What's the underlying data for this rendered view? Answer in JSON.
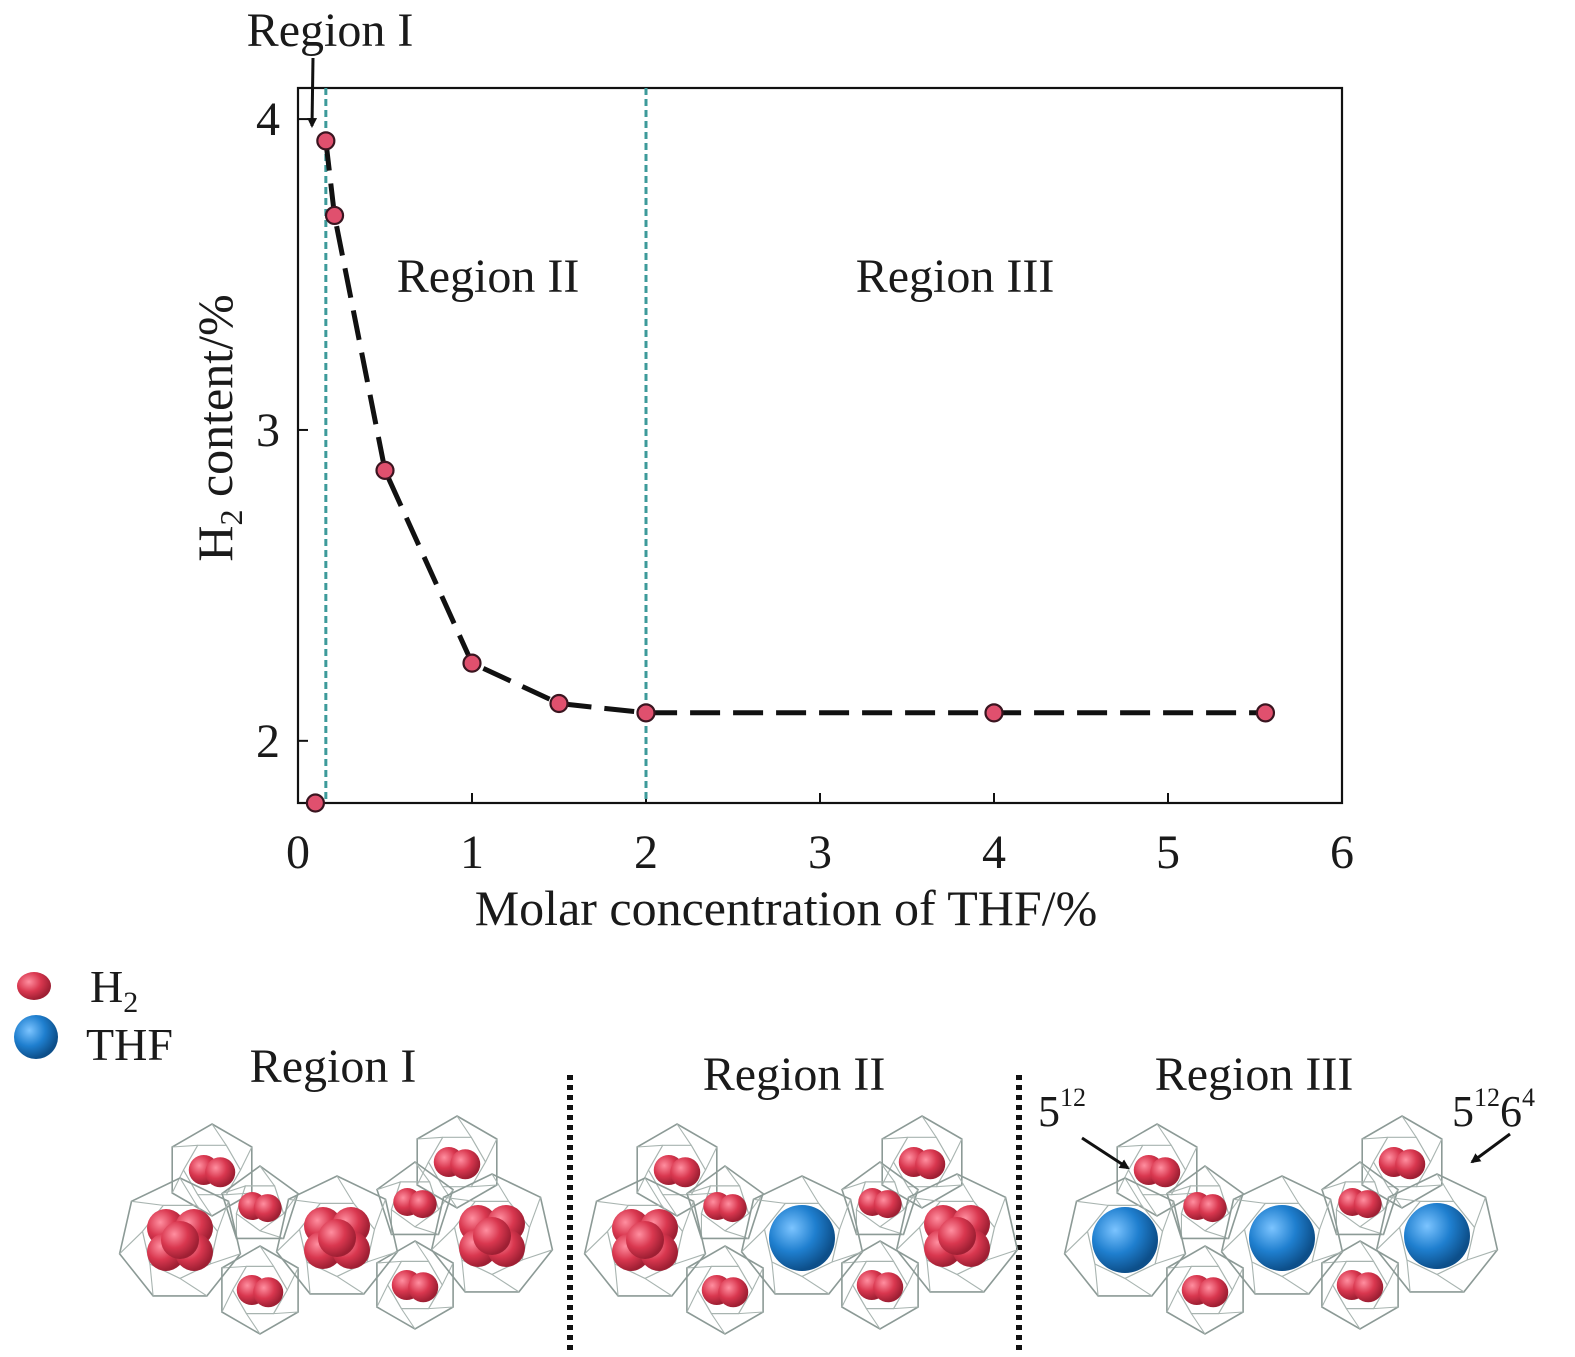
{
  "chart_data": {
    "type": "line",
    "xlabel": "Molar concentration of THF/%",
    "ylabel_main": "H",
    "ylabel_sub": "2",
    "ylabel_rest": " content/%",
    "xlim": [
      0,
      6
    ],
    "ylim": [
      1.8,
      4.1
    ],
    "xticks": [
      "0",
      "1",
      "2",
      "3",
      "4",
      "5",
      "6"
    ],
    "yticks": [
      "2",
      "3",
      "4"
    ],
    "grid": false,
    "series": [
      {
        "x": [
          0.1,
          0.16,
          0.21,
          0.5,
          1.0,
          1.5,
          2.0,
          4.0,
          5.56
        ],
        "y": [
          1.8,
          3.93,
          3.69,
          2.87,
          2.25,
          2.12,
          2.09,
          2.09,
          2.09
        ],
        "marker_color": "#e0506e",
        "line_color": "#111111"
      }
    ],
    "region_lines": [
      0.16,
      2.0
    ],
    "region_line_color": "#3d9a9a",
    "annotations": {
      "region1": "Region I",
      "region2": "Region II",
      "region3": "Region III"
    }
  },
  "legend": {
    "h2_main": "H",
    "h2_sub": "2",
    "thf": "THF",
    "h2_color": "#d9374f",
    "thf_color": "#1f7fcf"
  },
  "structures": {
    "region1_label": "Region I",
    "region2_label": "Region II",
    "region3_label": "Region III",
    "cage_small_base": "5",
    "cage_small_exp": "12",
    "cage_large_base1": "5",
    "cage_large_exp1": "12",
    "cage_large_base2": "6",
    "cage_large_exp2": "4",
    "panels": [
      {
        "large_cages": [
          "h2",
          "h2",
          "h2"
        ]
      },
      {
        "large_cages": [
          "h2",
          "thf",
          "h2"
        ]
      },
      {
        "large_cages": [
          "thf",
          "thf",
          "thf"
        ]
      }
    ]
  }
}
